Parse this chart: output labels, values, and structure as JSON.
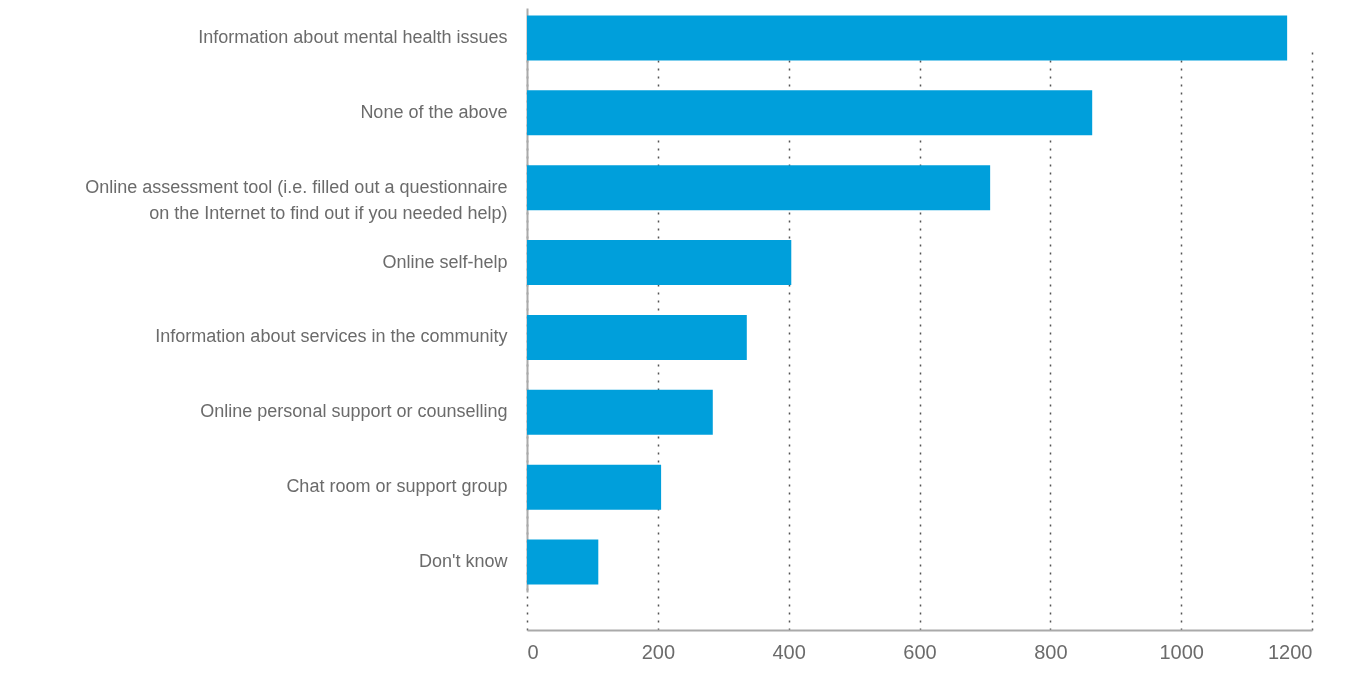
{
  "chart_data": {
    "type": "bar",
    "orientation": "horizontal",
    "categories": [
      "Information about mental health issues",
      "None of the above",
      "Online assessment tool (i.e. filled out a questionnaire on the Internet to find out if you needed help)",
      "Online self-help",
      "Information about services in the community",
      "Online personal support or counselling",
      "Chat room or support group",
      "Don't know"
    ],
    "values": [
      1162,
      864,
      708,
      404,
      336,
      284,
      205,
      109
    ],
    "color": "#009fdb",
    "xlim": [
      0,
      1200
    ],
    "xticks": [
      0,
      200,
      400,
      600,
      800,
      1000,
      1200
    ],
    "grid": "x"
  }
}
